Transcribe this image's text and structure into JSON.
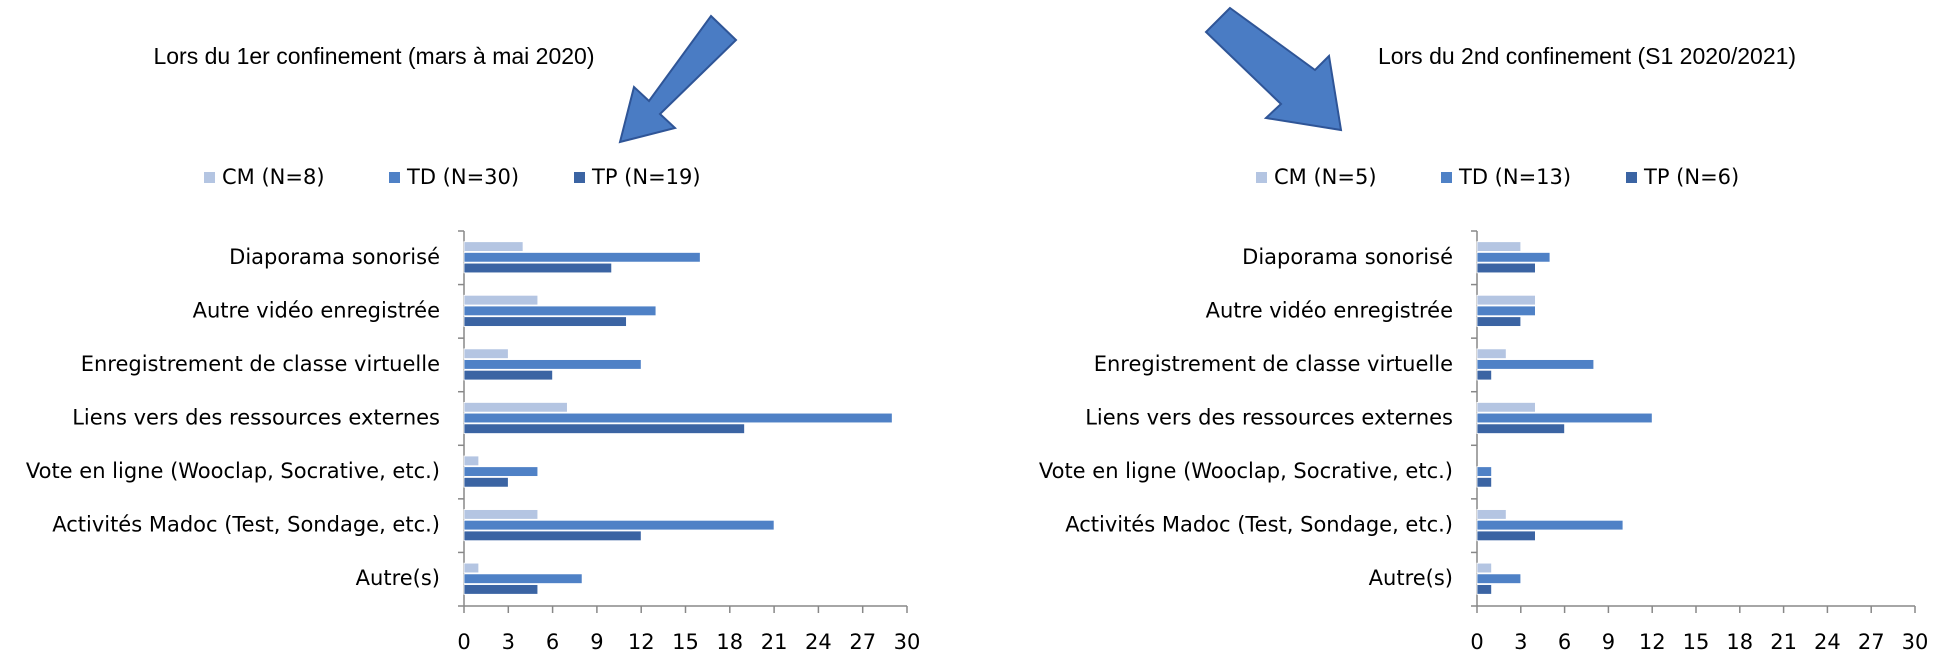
{
  "chart_data": [
    {
      "type": "barh",
      "title": "Lors du 1er confinement (mars à mai 2020)",
      "categories": [
        "Diaporama sonorisé",
        "Autre vidéo enregistrée",
        "Enregistrement de classe virtuelle",
        "Liens vers des ressources externes",
        "Vote en ligne (Wooclap, Socrative, etc.)",
        "Activités Madoc (Test, Sondage, etc.)",
        "Autre(s)"
      ],
      "series": [
        {
          "name": "CM (N=8)",
          "color": "#b4c5e2",
          "values": [
            4,
            5,
            3,
            7,
            1,
            5,
            1
          ]
        },
        {
          "name": "TD (N=30)",
          "color": "#4f81c6",
          "values": [
            16,
            13,
            12,
            29,
            5,
            21,
            8
          ]
        },
        {
          "name": "TP (N=19)",
          "color": "#3b64a3",
          "values": [
            10,
            11,
            6,
            19,
            3,
            12,
            5
          ]
        }
      ],
      "xlim": [
        0,
        30
      ],
      "xticks": [
        0,
        3,
        6,
        9,
        12,
        15,
        18,
        21,
        24,
        27,
        30
      ],
      "legend": "top"
    },
    {
      "type": "barh",
      "title": "Lors du 2nd confinement (S1 2020/2021)",
      "categories": [
        "Diaporama sonorisé",
        "Autre vidéo enregistrée",
        "Enregistrement de classe virtuelle",
        "Liens vers des ressources externes",
        "Vote en ligne (Wooclap, Socrative, etc.)",
        "Activités Madoc (Test, Sondage, etc.)",
        "Autre(s)"
      ],
      "series": [
        {
          "name": "CM (N=5)",
          "color": "#b4c5e2",
          "values": [
            3,
            4,
            2,
            4,
            0,
            2,
            1
          ]
        },
        {
          "name": "TD (N=13)",
          "color": "#4f81c6",
          "values": [
            5,
            4,
            8,
            12,
            1,
            10,
            3
          ]
        },
        {
          "name": "TP (N=6)",
          "color": "#3b64a3",
          "values": [
            4,
            3,
            1,
            6,
            1,
            4,
            1
          ]
        }
      ],
      "xlim": [
        0,
        30
      ],
      "xticks": [
        0,
        3,
        6,
        9,
        12,
        15,
        18,
        21,
        24,
        27,
        30
      ],
      "legend": "top"
    }
  ]
}
